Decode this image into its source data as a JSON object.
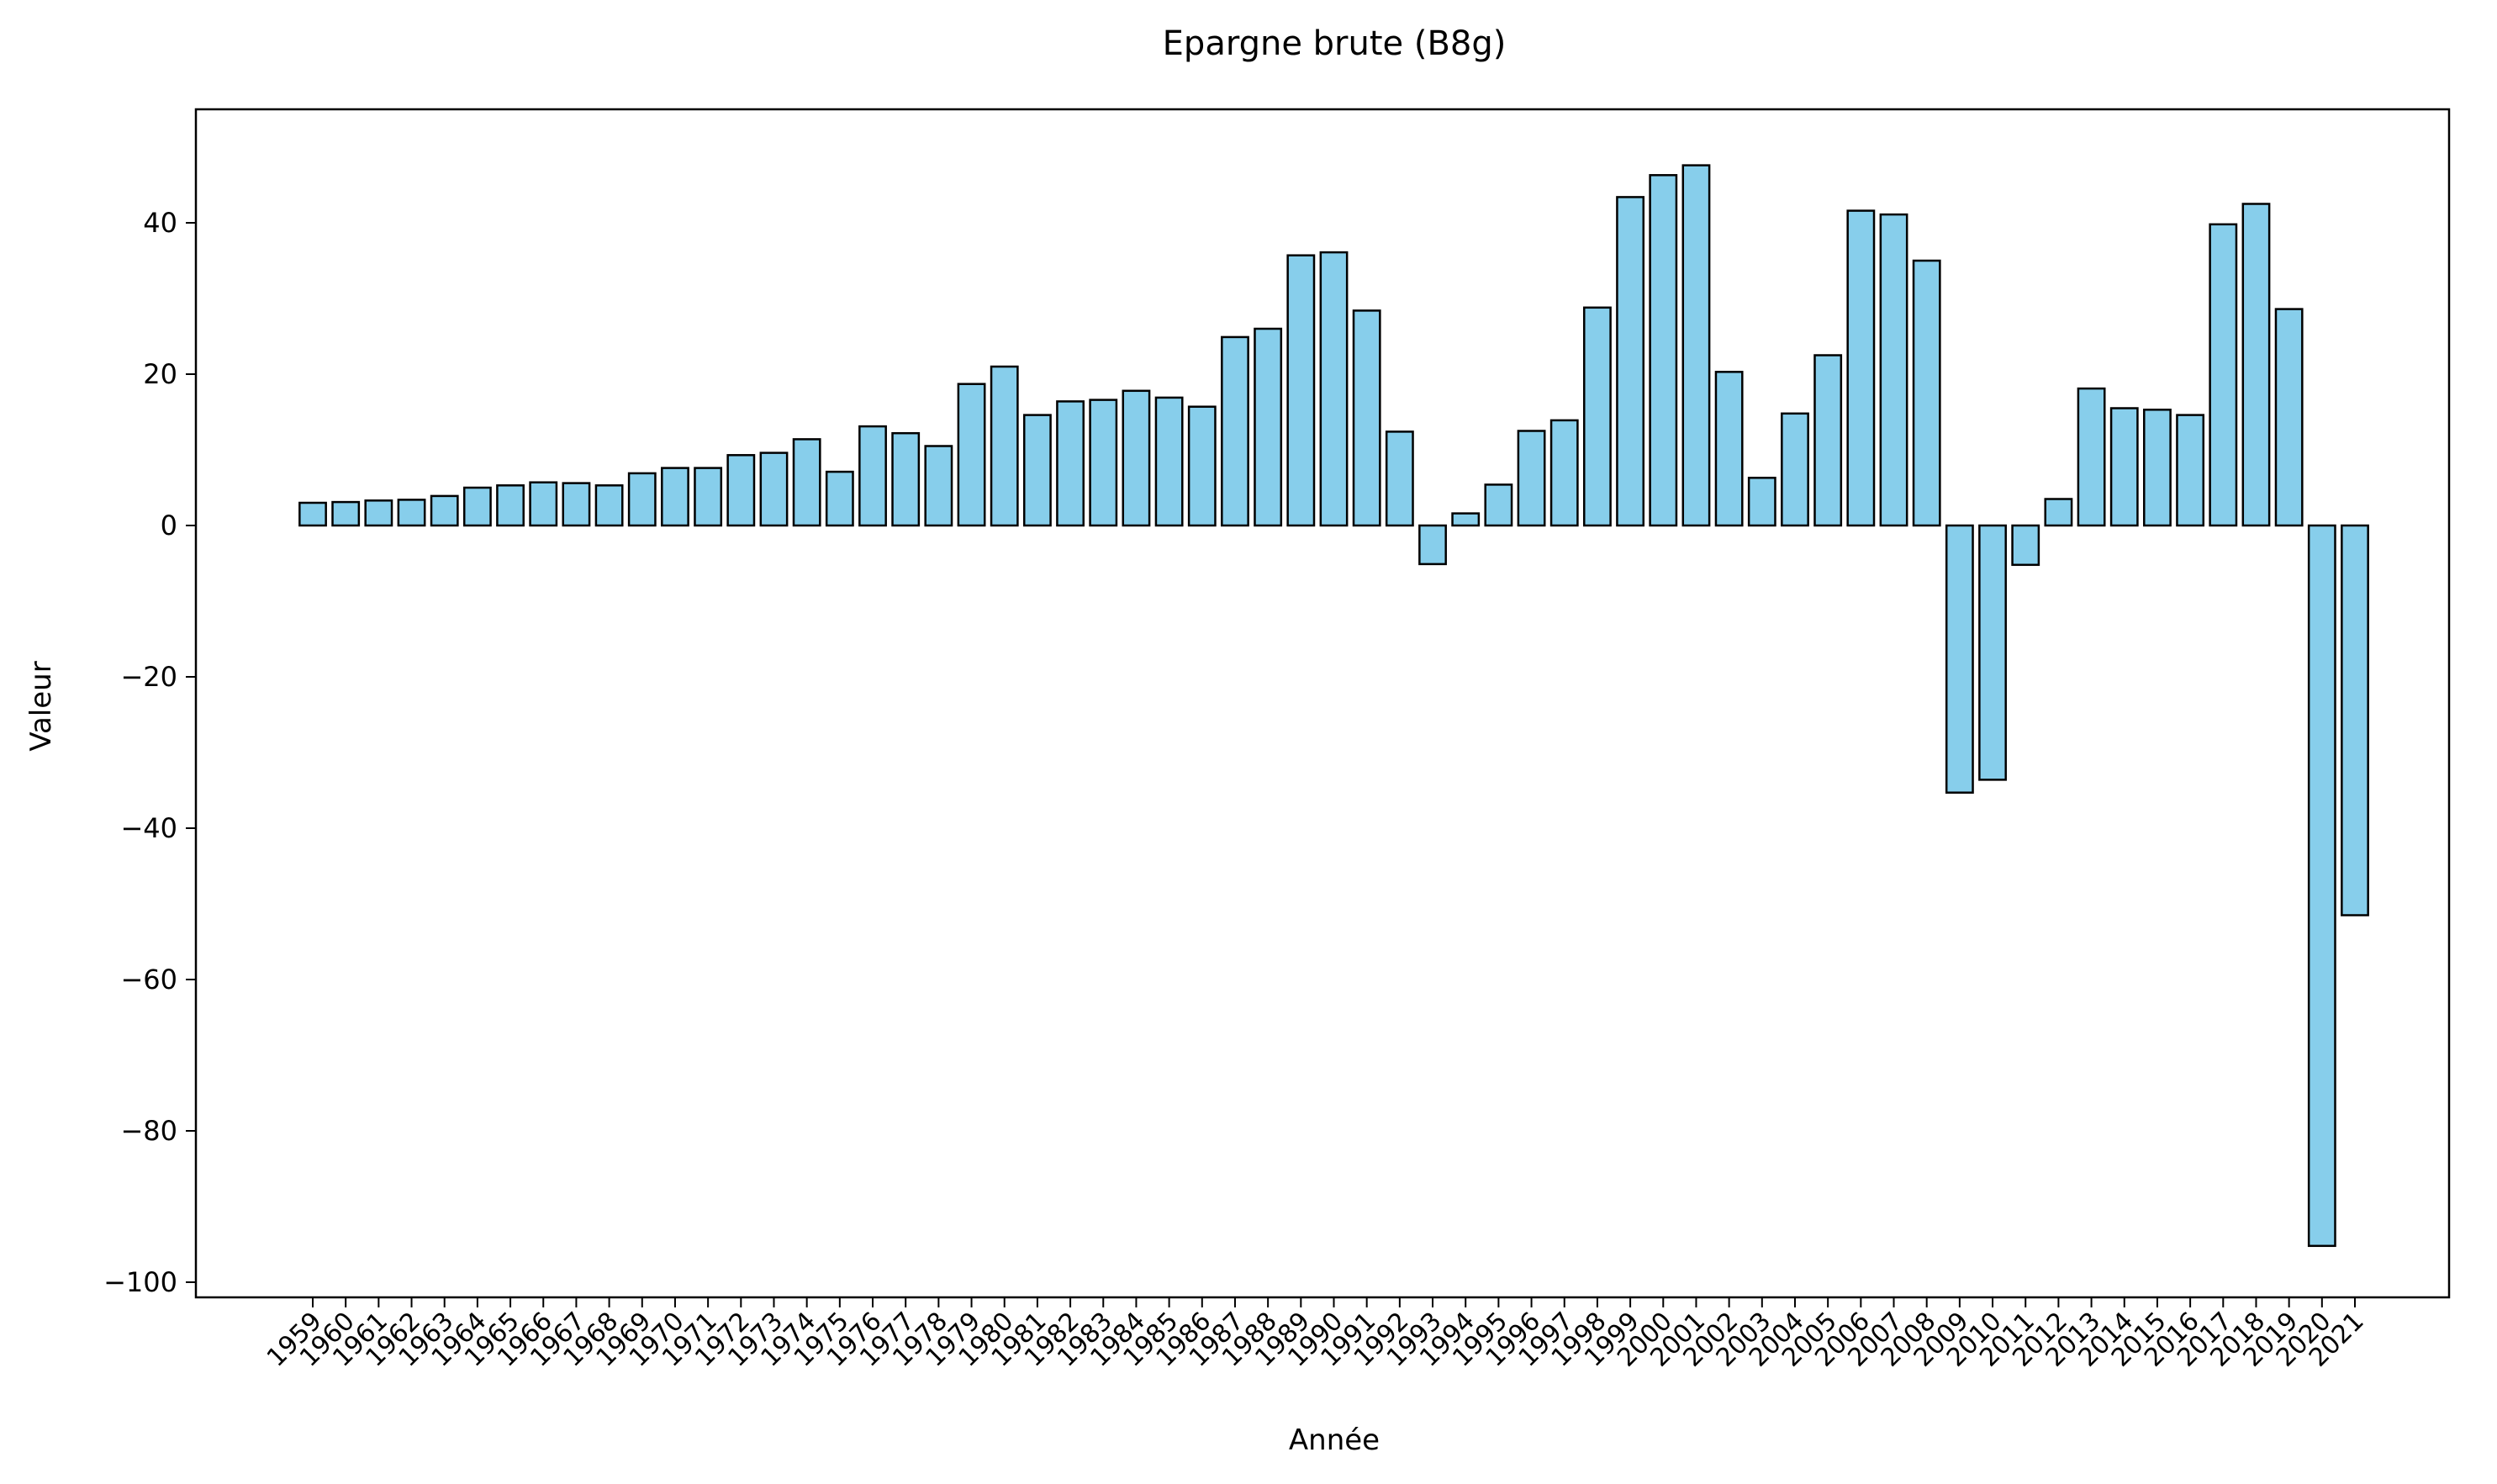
{
  "chart_data": {
    "type": "bar",
    "title": "Epargne brute (B8g)",
    "xlabel": "Année",
    "ylabel": "Valeur",
    "ylim": [
      -102,
      55
    ],
    "yticks": [
      -100,
      -80,
      -60,
      -40,
      -20,
      0,
      20,
      40
    ],
    "grid": false,
    "colors": {
      "bar_fill": "#87CEEB",
      "bar_edge": "#000000"
    },
    "categories": [
      "1959",
      "1960",
      "1961",
      "1962",
      "1963",
      "1964",
      "1965",
      "1966",
      "1967",
      "1968",
      "1969",
      "1970",
      "1971",
      "1972",
      "1973",
      "1974",
      "1975",
      "1976",
      "1977",
      "1978",
      "1979",
      "1980",
      "1981",
      "1982",
      "1983",
      "1984",
      "1985",
      "1986",
      "1987",
      "1988",
      "1989",
      "1990",
      "1991",
      "1992",
      "1993",
      "1994",
      "1995",
      "1996",
      "1997",
      "1998",
      "1999",
      "2000",
      "2001",
      "2002",
      "2003",
      "2004",
      "2005",
      "2006",
      "2007",
      "2008",
      "2009",
      "2010",
      "2011",
      "2012",
      "2013",
      "2014",
      "2015",
      "2016",
      "2017",
      "2018",
      "2019",
      "2020",
      "2021"
    ],
    "values": [
      3.0,
      3.1,
      3.3,
      3.4,
      3.9,
      5.0,
      5.3,
      5.7,
      5.6,
      5.3,
      6.9,
      7.6,
      7.6,
      9.3,
      9.6,
      11.4,
      7.1,
      13.1,
      12.2,
      10.5,
      18.7,
      21.0,
      14.6,
      16.4,
      16.6,
      17.8,
      16.9,
      15.7,
      24.9,
      26.0,
      35.7,
      36.1,
      28.4,
      12.4,
      -5.1,
      1.6,
      5.4,
      12.5,
      13.9,
      28.8,
      43.4,
      46.3,
      47.6,
      20.3,
      6.3,
      14.8,
      22.5,
      41.6,
      41.1,
      35.0,
      -35.3,
      -33.6,
      -5.2,
      3.5,
      18.1,
      15.5,
      15.3,
      14.6,
      39.8,
      42.5,
      28.6,
      -95.2,
      -51.5
    ]
  }
}
